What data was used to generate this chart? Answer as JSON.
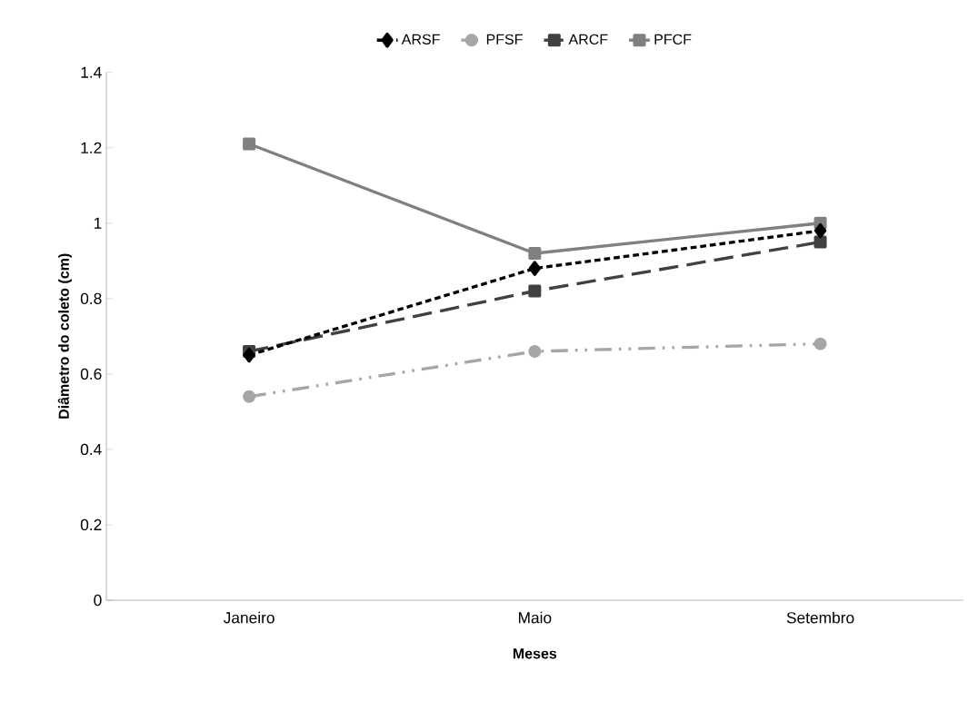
{
  "chart_data": {
    "type": "line",
    "xlabel": "Meses",
    "ylabel": "Diâmetro do coleto (cm)",
    "categories": [
      "Janeiro",
      "Maio",
      "Setembro"
    ],
    "series": [
      {
        "name": "ARSF",
        "color": "#000000",
        "values": [
          0.65,
          0.88,
          0.98
        ],
        "marker": "diamond",
        "line_style": "dashed"
      },
      {
        "name": "PFSF",
        "color": "#a6a6a6",
        "values": [
          0.54,
          0.66,
          0.68
        ],
        "marker": "circle",
        "line_style": "dashdotdotted"
      },
      {
        "name": "ARCF",
        "color": "#404040",
        "values": [
          0.66,
          0.82,
          0.95
        ],
        "marker": "square",
        "line_style": "longdashed"
      },
      {
        "name": "PFCF",
        "color": "#808080",
        "values": [
          1.21,
          0.92,
          1.0
        ],
        "marker": "square",
        "line_style": "solid"
      }
    ],
    "ylim": [
      0,
      1.4
    ],
    "yticks": [
      0,
      0.2,
      0.4,
      0.6,
      0.8,
      1,
      1.2,
      1.4
    ],
    "grid": false,
    "legend": "top"
  }
}
